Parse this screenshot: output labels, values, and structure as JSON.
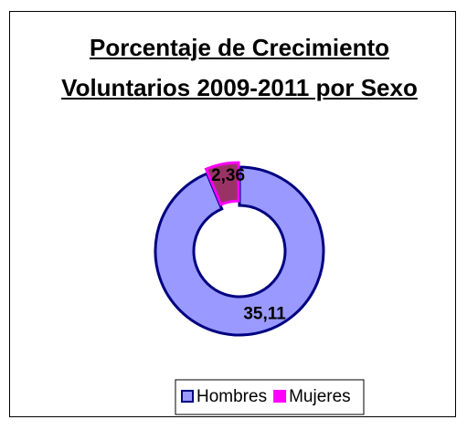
{
  "chart_data": {
    "type": "donut",
    "title": "Porcentaje de Crecimiento Voluntarios 2009-2011 por Sexo",
    "categories": [
      "Hombres",
      "Mujeres"
    ],
    "values": [
      35.11,
      2.36
    ],
    "value_labels": [
      "35,11",
      "2,36"
    ],
    "colors": [
      "#9999ff",
      "#993366"
    ],
    "edge_colors": [
      "#000080",
      "#ff00ff"
    ],
    "legend": "bottom"
  }
}
